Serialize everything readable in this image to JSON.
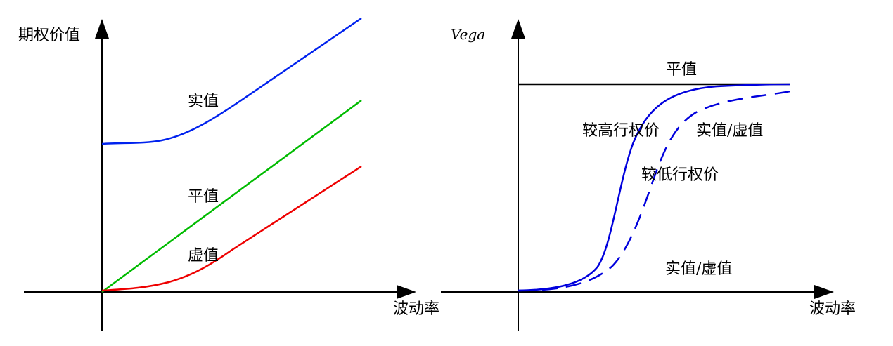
{
  "left_panel": {
    "y_axis_label": "期权价值",
    "x_axis_label": "波动率",
    "curve_labels": {
      "itm": "实值",
      "atm": "平值",
      "otm": "虚值"
    },
    "colors": {
      "itm": "#0022ee",
      "atm": "#00bb00",
      "otm": "#ee0000",
      "axis": "#000000"
    }
  },
  "right_panel": {
    "y_axis_label": "Vega",
    "x_axis_label": "波动率",
    "curve_labels": {
      "atm": "平值",
      "higher_strike": "较高行权价",
      "itm_otm_top": "实值/虚值",
      "lower_strike": "较低行权价",
      "itm_otm_bottom": "实值/虚值"
    },
    "colors": {
      "atm": "#000000",
      "higher_strike": "#0000dd",
      "lower_strike": "#0000dd",
      "axis": "#000000"
    }
  }
}
